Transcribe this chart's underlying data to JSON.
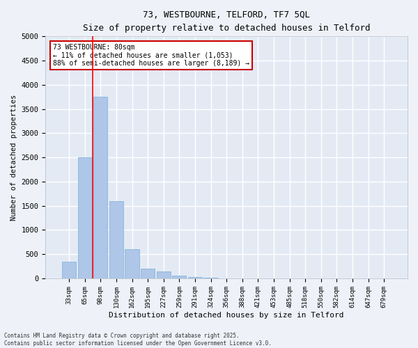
{
  "title_line1": "73, WESTBOURNE, TELFORD, TF7 5QL",
  "title_line2": "Size of property relative to detached houses in Telford",
  "xlabel": "Distribution of detached houses by size in Telford",
  "ylabel": "Number of detached properties",
  "categories": [
    "33sqm",
    "65sqm",
    "98sqm",
    "130sqm",
    "162sqm",
    "195sqm",
    "227sqm",
    "259sqm",
    "291sqm",
    "324sqm",
    "356sqm",
    "388sqm",
    "421sqm",
    "453sqm",
    "485sqm",
    "518sqm",
    "550sqm",
    "582sqm",
    "614sqm",
    "647sqm",
    "679sqm"
  ],
  "values": [
    350,
    2500,
    3750,
    1600,
    600,
    200,
    150,
    50,
    30,
    10,
    5,
    2,
    1,
    0,
    0,
    0,
    0,
    0,
    0,
    0,
    0
  ],
  "bar_color": "#aec6e8",
  "bar_edgecolor": "#7aafd4",
  "red_line_x": 1.5,
  "ylim": [
    0,
    5000
  ],
  "yticks": [
    0,
    500,
    1000,
    1500,
    2000,
    2500,
    3000,
    3500,
    4000,
    4500,
    5000
  ],
  "annotation_title": "73 WESTBOURNE: 80sqm",
  "annotation_line1": "← 11% of detached houses are smaller (1,053)",
  "annotation_line2": "88% of semi-detached houses are larger (8,189) →",
  "annotation_box_color": "#ffffff",
  "annotation_box_edgecolor": "#cc0000",
  "footer_line1": "Contains HM Land Registry data © Crown copyright and database right 2025.",
  "footer_line2": "Contains public sector information licensed under the Open Government Licence v3.0.",
  "bg_color": "#eef2f8",
  "plot_bg_color": "#e4eaf4",
  "grid_color": "#ffffff"
}
